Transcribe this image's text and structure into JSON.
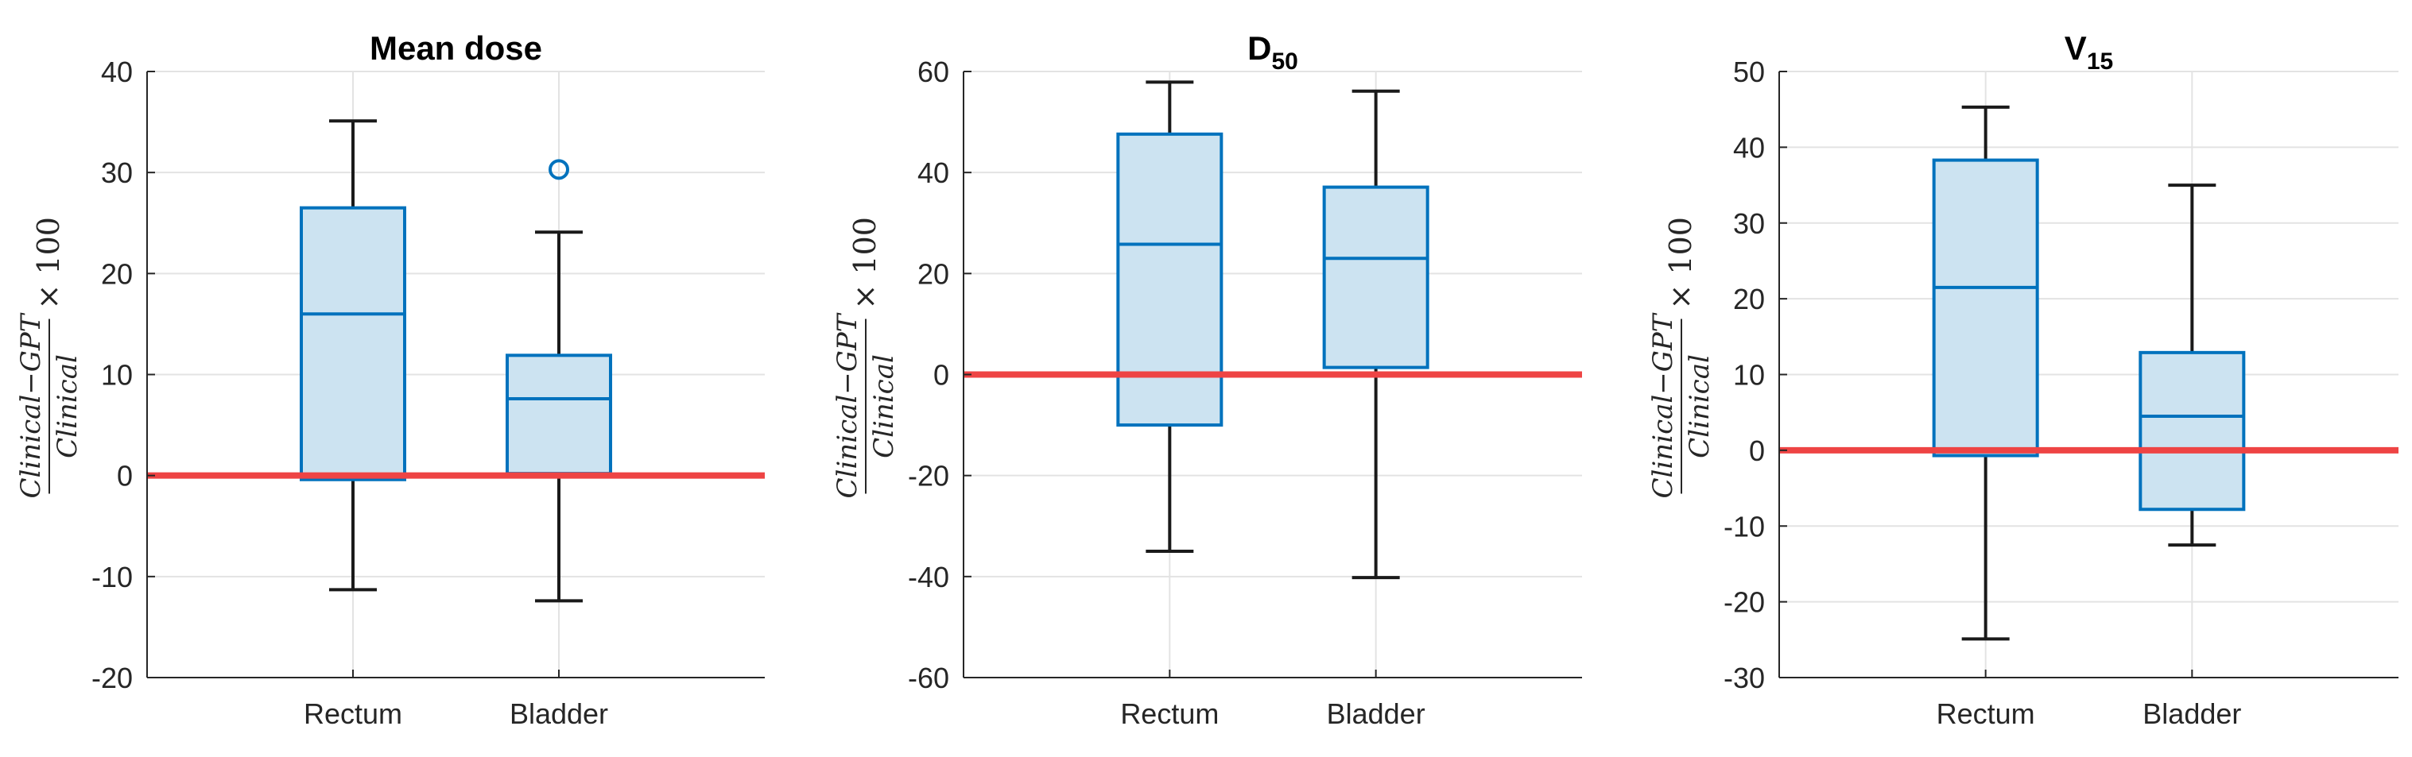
{
  "chart_data": [
    {
      "type": "box",
      "title": "Mean dose",
      "title_subscript": "",
      "ylabel": {
        "numerator": "Clinical−GPT",
        "denominator": "Clinical",
        "multiplier": "× 100"
      },
      "categories": [
        "Rectum",
        "Bladder"
      ],
      "ylim": [
        -20,
        40
      ],
      "yticks": [
        -20,
        -10,
        0,
        10,
        20,
        30,
        40
      ],
      "reference_line": 0,
      "grid": true,
      "boxes": [
        {
          "category": "Rectum",
          "whisker_low": -11.3,
          "q1": -0.4,
          "median": 16.0,
          "q3": 26.5,
          "whisker_high": 35.1,
          "outliers": []
        },
        {
          "category": "Bladder",
          "whisker_low": -12.4,
          "q1": 0.2,
          "median": 7.6,
          "q3": 11.9,
          "whisker_high": 24.1,
          "outliers": [
            30.3
          ]
        }
      ]
    },
    {
      "type": "box",
      "title": "D",
      "title_subscript": "50",
      "ylabel": {
        "numerator": "Clinical−GPT",
        "denominator": "Clinical",
        "multiplier": "× 100"
      },
      "categories": [
        "Rectum",
        "Bladder"
      ],
      "ylim": [
        -60,
        60
      ],
      "yticks": [
        -60,
        -40,
        -20,
        0,
        20,
        40,
        60
      ],
      "reference_line": 0,
      "grid": true,
      "boxes": [
        {
          "category": "Rectum",
          "whisker_low": -35.0,
          "q1": -10.0,
          "median": 25.8,
          "q3": 47.6,
          "whisker_high": 57.9,
          "outliers": []
        },
        {
          "category": "Bladder",
          "whisker_low": -40.2,
          "q1": 1.4,
          "median": 23.0,
          "q3": 37.1,
          "whisker_high": 56.1,
          "outliers": []
        }
      ]
    },
    {
      "type": "box",
      "title": "V",
      "title_subscript": "15",
      "ylabel": {
        "numerator": "Clinical−GPT",
        "denominator": "Clinical",
        "multiplier": "× 100"
      },
      "categories": [
        "Rectum",
        "Bladder"
      ],
      "ylim": [
        -30,
        50
      ],
      "yticks": [
        -30,
        -20,
        -10,
        0,
        10,
        20,
        30,
        40,
        50
      ],
      "reference_line": 0,
      "grid": true,
      "boxes": [
        {
          "category": "Rectum",
          "whisker_low": -24.9,
          "q1": -0.7,
          "median": 21.5,
          "q3": 38.3,
          "whisker_high": 45.3,
          "outliers": []
        },
        {
          "category": "Bladder",
          "whisker_low": -12.5,
          "q1": -7.8,
          "median": 4.5,
          "q3": 12.9,
          "whisker_high": 35.0,
          "outliers": []
        }
      ]
    }
  ],
  "colors": {
    "box_edge": "#0072bd",
    "box_fill": "#cce3f1",
    "whisker": "#1a1a1a",
    "reference_line": "#ee4444",
    "grid": "#e3e3e3",
    "axis": "#262626"
  }
}
